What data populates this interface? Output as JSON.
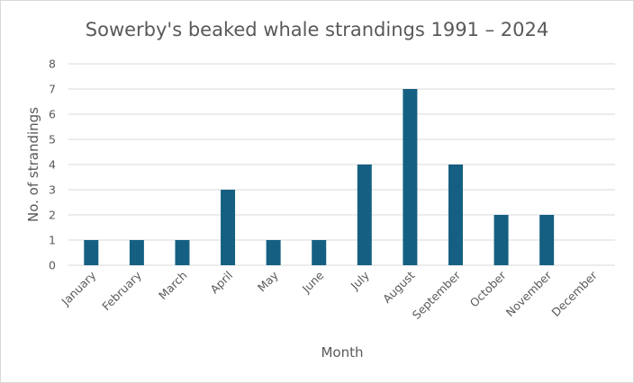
{
  "chart_data": {
    "type": "bar",
    "title": "Sowerby's beaked whale strandings 1991 – 2024",
    "xlabel": "Month",
    "ylabel": "No. of strandings",
    "categories": [
      "January",
      "February",
      "March",
      "April",
      "May",
      "June",
      "July",
      "August",
      "September",
      "October",
      "November",
      "December"
    ],
    "values": [
      1,
      1,
      1,
      3,
      1,
      1,
      4,
      7,
      4,
      2,
      2,
      0
    ],
    "ylim": [
      0,
      8
    ],
    "yticks": [
      0,
      1,
      2,
      3,
      4,
      5,
      6,
      7,
      8
    ],
    "grid": true,
    "legend": "none",
    "bar_color": "#156082",
    "grid_color": "#d9d9d9",
    "text_color": "#595959"
  }
}
